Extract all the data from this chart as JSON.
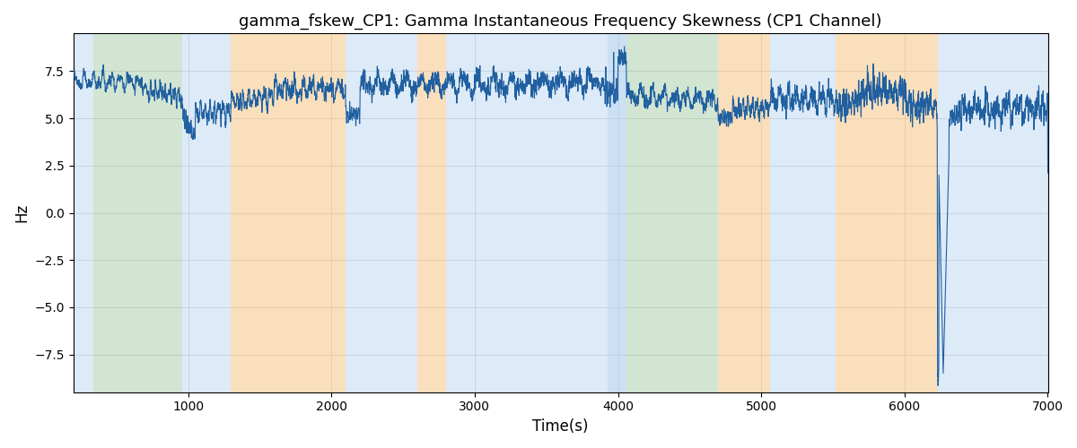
{
  "title": "gamma_fskew_CP1: Gamma Instantaneous Frequency Skewness (CP1 Channel)",
  "xlabel": "Time(s)",
  "ylabel": "Hz",
  "xlim": [
    200,
    7000
  ],
  "ylim": [
    -9.5,
    9.5
  ],
  "yticks": [
    -7.5,
    -5.0,
    -2.5,
    0.0,
    2.5,
    5.0,
    7.5
  ],
  "xticks": [
    1000,
    2000,
    3000,
    4000,
    5000,
    6000,
    7000
  ],
  "bg_color": "#ffffff",
  "line_color": "#2060a0",
  "line_width": 0.8,
  "bands": [
    {
      "xmin": 200,
      "xmax": 340,
      "color": "#aaccee",
      "alpha": 0.4
    },
    {
      "xmin": 340,
      "xmax": 960,
      "color": "#90c090",
      "alpha": 0.4
    },
    {
      "xmin": 960,
      "xmax": 1300,
      "color": "#aaccee",
      "alpha": 0.4
    },
    {
      "xmin": 1300,
      "xmax": 2100,
      "color": "#f5c07a",
      "alpha": 0.5
    },
    {
      "xmin": 2100,
      "xmax": 2600,
      "color": "#aaccee",
      "alpha": 0.4
    },
    {
      "xmin": 2600,
      "xmax": 2800,
      "color": "#f5c07a",
      "alpha": 0.5
    },
    {
      "xmin": 2800,
      "xmax": 3930,
      "color": "#aaccee",
      "alpha": 0.4
    },
    {
      "xmin": 3930,
      "xmax": 4060,
      "color": "#aaccee",
      "alpha": 0.6
    },
    {
      "xmin": 4060,
      "xmax": 4700,
      "color": "#90c090",
      "alpha": 0.4
    },
    {
      "xmin": 4700,
      "xmax": 5060,
      "color": "#f5c07a",
      "alpha": 0.5
    },
    {
      "xmin": 5060,
      "xmax": 5520,
      "color": "#aaccee",
      "alpha": 0.4
    },
    {
      "xmin": 5520,
      "xmax": 6230,
      "color": "#f5c07a",
      "alpha": 0.5
    },
    {
      "xmin": 6230,
      "xmax": 7000,
      "color": "#aaccee",
      "alpha": 0.4
    }
  ],
  "signal_segments": [
    {
      "t_start": 200,
      "t_end": 700,
      "mean": 7.0,
      "std": 0.25,
      "trend": -0.1
    },
    {
      "t_start": 700,
      "t_end": 960,
      "mean": 6.5,
      "std": 0.3,
      "trend": -0.3
    },
    {
      "t_start": 960,
      "t_end": 1050,
      "mean": 5.0,
      "std": 0.4,
      "trend": -1.0
    },
    {
      "t_start": 1050,
      "t_end": 1300,
      "mean": 5.2,
      "std": 0.35,
      "trend": 0.2
    },
    {
      "t_start": 1300,
      "t_end": 1600,
      "mean": 5.8,
      "std": 0.35,
      "trend": 0.4
    },
    {
      "t_start": 1600,
      "t_end": 2100,
      "mean": 6.5,
      "std": 0.4,
      "trend": 0.1
    },
    {
      "t_start": 2100,
      "t_end": 2200,
      "mean": 5.2,
      "std": 0.3,
      "trend": 0.0
    },
    {
      "t_start": 2200,
      "t_end": 3000,
      "mean": 6.8,
      "std": 0.45,
      "trend": 0.0
    },
    {
      "t_start": 3000,
      "t_end": 3900,
      "mean": 6.8,
      "std": 0.45,
      "trend": 0.1
    },
    {
      "t_start": 3900,
      "t_end": 4000,
      "mean": 6.5,
      "std": 0.5,
      "trend": 0.0
    },
    {
      "t_start": 4000,
      "t_end": 4060,
      "mean": 8.3,
      "std": 0.3,
      "trend": 0.0
    },
    {
      "t_start": 4060,
      "t_end": 4700,
      "mean": 6.2,
      "std": 0.35,
      "trend": -0.2
    },
    {
      "t_start": 4700,
      "t_end": 4800,
      "mean": 5.0,
      "std": 0.3,
      "trend": 0.0
    },
    {
      "t_start": 4800,
      "t_end": 5060,
      "mean": 5.5,
      "std": 0.35,
      "trend": 0.1
    },
    {
      "t_start": 5060,
      "t_end": 5520,
      "mean": 6.0,
      "std": 0.5,
      "trend": 0.0
    },
    {
      "t_start": 5520,
      "t_end": 5700,
      "mean": 5.8,
      "std": 0.6,
      "trend": 0.2
    },
    {
      "t_start": 5700,
      "t_end": 6000,
      "mean": 6.5,
      "std": 0.7,
      "trend": 0.0
    },
    {
      "t_start": 6000,
      "t_end": 6230,
      "mean": 6.0,
      "std": 0.6,
      "trend": -0.5
    },
    {
      "t_start": 6230,
      "t_end": 6290,
      "mean": -8.5,
      "std": 0.8,
      "trend": 0.0
    },
    {
      "t_start": 6290,
      "t_end": 6400,
      "mean": 5.0,
      "std": 0.5,
      "trend": 0.3
    },
    {
      "t_start": 6400,
      "t_end": 7000,
      "mean": 5.5,
      "std": 0.6,
      "trend": 0.1
    }
  ],
  "seed": 42
}
